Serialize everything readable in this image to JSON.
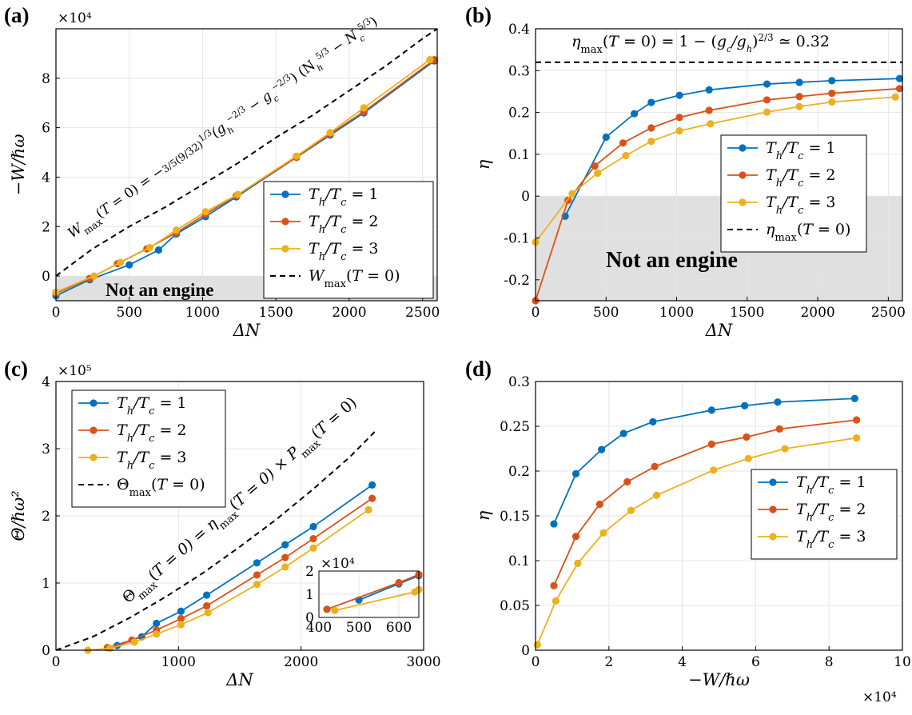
{
  "colors": {
    "s1": "#0072BD",
    "s2": "#D95319",
    "s3": "#EDB120",
    "shade": "#e0e0e0",
    "grid": "#e6e6e6"
  },
  "chart_data": [
    {
      "panel_label": "(a)",
      "type": "line",
      "xlabel": "ΔN",
      "ylabel": "−W/ℏω",
      "xlim": [
        0,
        2600
      ],
      "ylim": [
        -1,
        10
      ],
      "xticks": [
        0,
        500,
        1000,
        1500,
        2000,
        2500
      ],
      "yticks": [
        0,
        2,
        4,
        6,
        8
      ],
      "ytick_labels": [
        "0",
        "2",
        "4",
        "6",
        "8"
      ],
      "y_multiplier": "×10⁴",
      "grid": true,
      "legend_position": "lower-right",
      "legend": [
        "Th/Tc = 1",
        "Th/Tc = 2",
        "Th/Tc = 3",
        "Wmax(T = 0)"
      ],
      "shaded_region": {
        "label": "Not an engine",
        "y_range": [
          -1,
          0
        ]
      },
      "annotation": "Wmax(T = 0) = −3/5 (9/32)^1/3 (gh^−2/3 − gc^−2/3) (Nh^5/3 − Nc^5/3)",
      "series": [
        {
          "name": "Th/Tc = 1",
          "x": [
            0,
            230,
            500,
            700,
            820,
            1020,
            1230,
            1640,
            1870,
            2100,
            2580
          ],
          "y": [
            -0.8,
            -0.15,
            0.45,
            1.05,
            1.7,
            2.4,
            3.2,
            4.8,
            5.7,
            6.6,
            8.7
          ]
        },
        {
          "name": "Th/Tc = 2",
          "x": [
            0,
            230,
            420,
            620,
            820,
            1020,
            1230,
            1640,
            1870,
            2100,
            2580
          ],
          "y": [
            -0.7,
            -0.1,
            0.5,
            1.1,
            1.75,
            2.5,
            3.25,
            4.8,
            5.75,
            6.65,
            8.75
          ]
        },
        {
          "name": "Th/Tc = 3",
          "x": [
            0,
            260,
            440,
            640,
            820,
            1020,
            1240,
            1640,
            1870,
            2100,
            2550
          ],
          "y": [
            -0.65,
            0.0,
            0.55,
            1.15,
            1.85,
            2.6,
            3.3,
            4.85,
            5.8,
            6.8,
            8.75
          ]
        },
        {
          "name": "Wmax(T = 0)",
          "x": [
            0,
            250,
            500,
            750,
            1000,
            1250,
            1500,
            1750,
            2000,
            2250,
            2500,
            2600
          ],
          "y": [
            0,
            1.1,
            2.0,
            2.8,
            3.7,
            4.6,
            5.6,
            6.5,
            7.5,
            8.5,
            9.6,
            10.0
          ]
        }
      ]
    },
    {
      "panel_label": "(b)",
      "type": "line",
      "xlabel": "ΔN",
      "ylabel": "η",
      "xlim": [
        0,
        2600
      ],
      "ylim": [
        -0.25,
        0.4
      ],
      "xticks": [
        0,
        500,
        1000,
        1500,
        2000,
        2500
      ],
      "yticks": [
        -0.2,
        -0.1,
        0,
        0.1,
        0.2,
        0.3,
        0.4
      ],
      "ytick_labels": [
        "-0.2",
        "-0.1",
        "0",
        "0.1",
        "0.2",
        "0.3",
        "0.4"
      ],
      "grid": true,
      "legend_position": "center-right",
      "legend": [
        "Th/Tc = 1",
        "Th/Tc = 2",
        "Th/Tc = 3",
        "ηmax(T = 0)"
      ],
      "shaded_region": {
        "label": "Not an engine",
        "y_range": [
          -0.25,
          0
        ]
      },
      "annotation": "ηmax(T = 0) = 1 − (gc/gh)^2/3 ≃ 0.32",
      "series": [
        {
          "name": "Th/Tc = 1",
          "x": [
            210,
            500,
            700,
            820,
            1020,
            1230,
            1640,
            1870,
            2100,
            2580
          ],
          "y": [
            -0.048,
            0.141,
            0.197,
            0.224,
            0.241,
            0.254,
            0.268,
            0.272,
            0.276,
            0.281
          ]
        },
        {
          "name": "Th/Tc = 2",
          "x": [
            0,
            230,
            420,
            620,
            820,
            1020,
            1230,
            1640,
            1870,
            2100,
            2580
          ],
          "y": [
            -0.25,
            -0.01,
            0.072,
            0.127,
            0.163,
            0.188,
            0.205,
            0.23,
            0.238,
            0.246,
            0.257
          ]
        },
        {
          "name": "Th/Tc = 3",
          "x": [
            0,
            260,
            440,
            640,
            820,
            1020,
            1240,
            1640,
            1870,
            2100,
            2550
          ],
          "y": [
            -0.11,
            0.006,
            0.055,
            0.097,
            0.131,
            0.156,
            0.173,
            0.201,
            0.214,
            0.225,
            0.237
          ]
        },
        {
          "name": "ηmax(T = 0)",
          "x": [
            0,
            2600
          ],
          "y": [
            0.32,
            0.32
          ]
        }
      ]
    },
    {
      "panel_label": "(c)",
      "type": "line",
      "xlabel": "ΔN",
      "ylabel": "Θ/ℏω²",
      "xlim": [
        0,
        3000
      ],
      "ylim": [
        0,
        4
      ],
      "xticks": [
        0,
        1000,
        2000,
        3000
      ],
      "yticks": [
        0,
        1,
        2,
        3,
        4
      ],
      "ytick_labels": [
        "0",
        "1",
        "2",
        "3",
        "4"
      ],
      "y_multiplier": "×10⁵",
      "grid": true,
      "legend_position": "upper-left",
      "legend": [
        "Th/Tc = 1",
        "Th/Tc = 2",
        "Th/Tc = 3",
        "Θmax(T = 0)"
      ],
      "annotation": "Θmax(T = 0) = ηmax(T = 0) × Pmax(T = 0)",
      "series": [
        {
          "name": "Th/Tc = 1",
          "x": [
            500,
            700,
            820,
            1020,
            1230,
            1640,
            1870,
            2100,
            2580
          ],
          "y": [
            0.07,
            0.2,
            0.4,
            0.58,
            0.82,
            1.3,
            1.57,
            1.84,
            2.46
          ]
        },
        {
          "name": "Th/Tc = 2",
          "x": [
            420,
            620,
            820,
            1020,
            1230,
            1640,
            1870,
            2100,
            2580
          ],
          "y": [
            0.04,
            0.15,
            0.3,
            0.47,
            0.66,
            1.12,
            1.38,
            1.66,
            2.26
          ]
        },
        {
          "name": "Th/Tc = 3",
          "x": [
            260,
            440,
            640,
            820,
            1020,
            1240,
            1640,
            1870,
            2100,
            2550
          ],
          "y": [
            0.0,
            0.03,
            0.12,
            0.24,
            0.38,
            0.56,
            0.98,
            1.24,
            1.52,
            2.09
          ]
        },
        {
          "name": "Θmax(T = 0)",
          "x": [
            0,
            300,
            600,
            900,
            1200,
            1500,
            1800,
            2100,
            2400,
            2600
          ],
          "y": [
            0,
            0.2,
            0.48,
            0.8,
            1.15,
            1.54,
            1.95,
            2.4,
            2.88,
            3.25
          ]
        }
      ],
      "inset": {
        "xlim": [
          400,
          650
        ],
        "ylim": [
          0,
          2
        ],
        "xticks": [
          400,
          500,
          600
        ],
        "yticks": [
          0,
          1,
          2
        ],
        "y_multiplier": "×10⁴",
        "series": [
          {
            "name": "Th/Tc = 1",
            "x": [
              500,
              600,
              650
            ],
            "y": [
              0.75,
              1.45,
              1.8
            ]
          },
          {
            "name": "Th/Tc = 2",
            "x": [
              420,
              600,
              650
            ],
            "y": [
              0.35,
              1.5,
              1.85
            ]
          },
          {
            "name": "Th/Tc = 3",
            "x": [
              440,
              640,
              650
            ],
            "y": [
              0.3,
              1.1,
              1.2
            ]
          }
        ]
      }
    },
    {
      "panel_label": "(d)",
      "type": "line",
      "xlabel": "−W/ℏω",
      "ylabel": "η",
      "xlim": [
        0,
        10
      ],
      "ylim": [
        0,
        0.3
      ],
      "xticks": [
        0,
        2,
        4,
        6,
        8,
        10
      ],
      "yticks": [
        0,
        0.05,
        0.1,
        0.15,
        0.2,
        0.25,
        0.3
      ],
      "ytick_labels": [
        "0",
        "0.05",
        "0.1",
        "0.15",
        "0.2",
        "0.25",
        "0.3"
      ],
      "x_multiplier": "×10⁴",
      "grid": true,
      "legend_position": "center-right",
      "legend": [
        "Th/Tc = 1",
        "Th/Tc = 2",
        "Th/Tc = 3"
      ],
      "series": [
        {
          "name": "Th/Tc = 1",
          "x": [
            0.5,
            1.1,
            1.8,
            2.4,
            3.2,
            4.8,
            5.7,
            6.6,
            8.7
          ],
          "y": [
            0.141,
            0.197,
            0.224,
            0.242,
            0.255,
            0.268,
            0.273,
            0.277,
            0.281
          ]
        },
        {
          "name": "Th/Tc = 2",
          "x": [
            0.5,
            1.1,
            1.75,
            2.5,
            3.25,
            4.8,
            5.75,
            6.65,
            8.75
          ],
          "y": [
            0.072,
            0.127,
            0.163,
            0.188,
            0.205,
            0.23,
            0.238,
            0.247,
            0.257
          ]
        },
        {
          "name": "Th/Tc = 3",
          "x": [
            0.05,
            0.55,
            1.15,
            1.85,
            2.6,
            3.3,
            4.85,
            5.8,
            6.8,
            8.75
          ],
          "y": [
            0.006,
            0.055,
            0.097,
            0.131,
            0.156,
            0.173,
            0.201,
            0.214,
            0.225,
            0.237
          ]
        }
      ]
    }
  ]
}
